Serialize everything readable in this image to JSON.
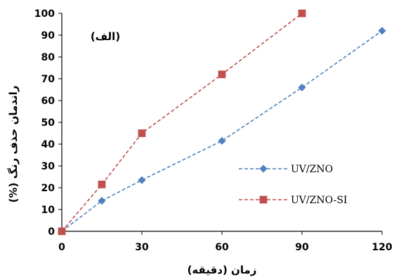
{
  "chart_data": {
    "type": "line",
    "title": "",
    "panel_label": "(الف)",
    "xlabel": "زمان (دقیقه)",
    "ylabel": "(%) راندمان حذف رنگ",
    "xlim": [
      0,
      120
    ],
    "ylim": [
      0,
      100
    ],
    "x_ticks": [
      0,
      30,
      60,
      90,
      120
    ],
    "y_ticks": [
      0,
      10,
      20,
      30,
      40,
      50,
      60,
      70,
      80,
      90,
      100
    ],
    "grid": false,
    "legend_position": "right",
    "series": [
      {
        "name": "UV/ZNO",
        "color": "#4f81bd",
        "marker": "diamond",
        "line_style": "dashed",
        "x": [
          0,
          15,
          30,
          60,
          90,
          120
        ],
        "values": [
          0,
          14,
          23.5,
          41.5,
          66,
          92
        ]
      },
      {
        "name": "UV/ZNO-SI",
        "color": "#c0504d",
        "marker": "square",
        "line_style": "dashed",
        "x": [
          0,
          15,
          30,
          60,
          90
        ],
        "values": [
          0,
          21.5,
          45,
          72,
          100
        ]
      }
    ]
  }
}
